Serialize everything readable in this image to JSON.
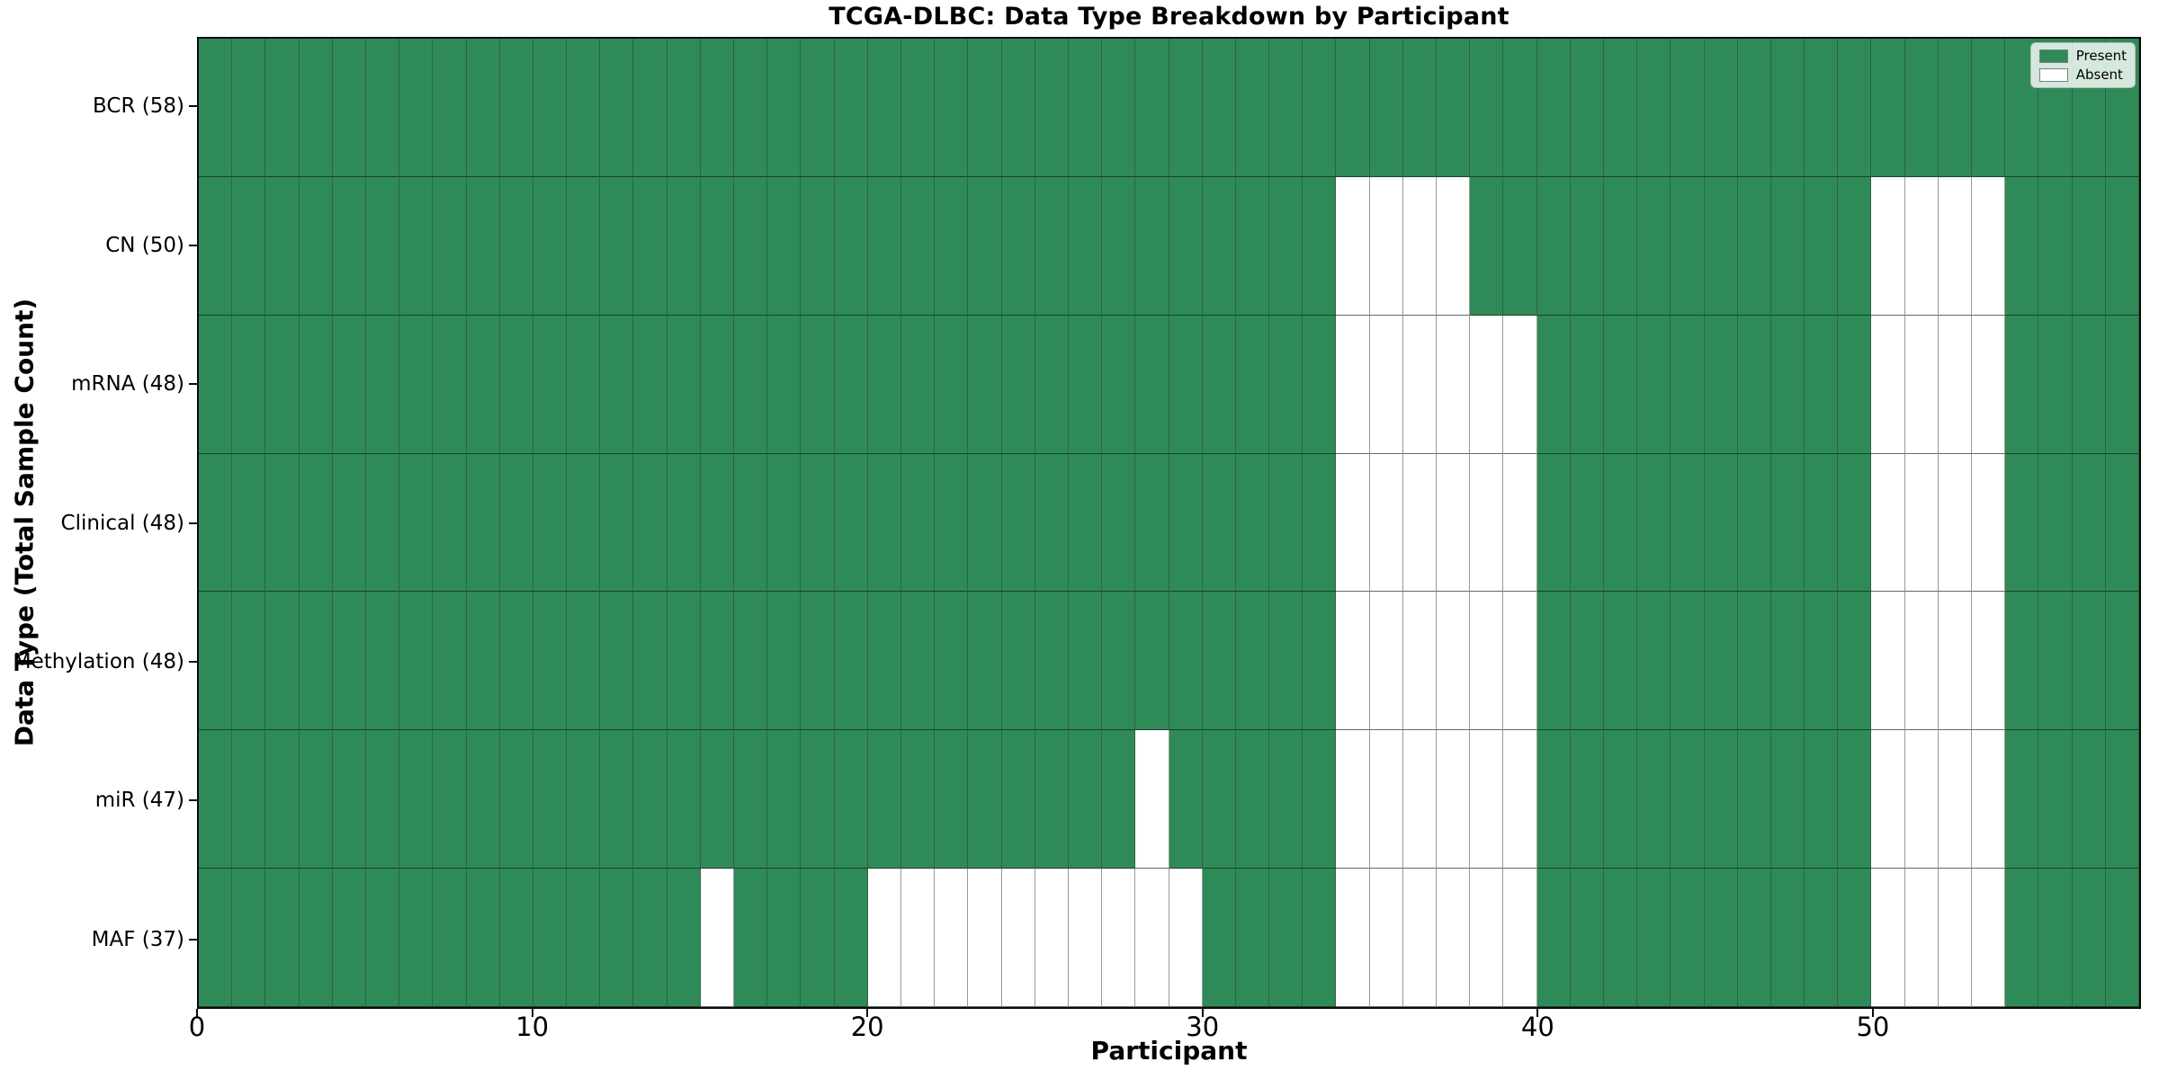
{
  "figure": {
    "title": "TCGA-DLBC: Data Type Breakdown by Participant",
    "xlabel": "Participant",
    "ylabel": "Data Type (Total Sample Count)"
  },
  "legend": {
    "items": [
      {
        "label": "Present",
        "color": "#2E8B57"
      },
      {
        "label": "Absent",
        "color": "#FFFFFF"
      }
    ]
  },
  "chart_data": {
    "type": "heatmap",
    "title": "TCGA-DLBC: Data Type Breakdown by Participant",
    "xlabel": "Participant",
    "ylabel": "Data Type (Total Sample Count)",
    "n_participants": 58,
    "x_ticks": [
      0,
      10,
      20,
      30,
      40,
      50
    ],
    "xlim": [
      0,
      58
    ],
    "grid": true,
    "legend_position": "upper right",
    "colors": {
      "present": "#2E8B57",
      "absent": "#FFFFFF"
    },
    "rows": [
      {
        "label": "BCR (58)",
        "data_type": "BCR",
        "present_count": 58,
        "absent_participants": []
      },
      {
        "label": "CN (50)",
        "data_type": "CN",
        "present_count": 50,
        "absent_participants": [
          34,
          35,
          36,
          37,
          50,
          51,
          52,
          53
        ]
      },
      {
        "label": "mRNA (48)",
        "data_type": "mRNA",
        "present_count": 48,
        "absent_participants": [
          34,
          35,
          36,
          37,
          38,
          39,
          50,
          51,
          52,
          53
        ]
      },
      {
        "label": "Clinical (48)",
        "data_type": "Clinical",
        "present_count": 48,
        "absent_participants": [
          34,
          35,
          36,
          37,
          38,
          39,
          50,
          51,
          52,
          53
        ]
      },
      {
        "label": "Methylation (48)",
        "data_type": "Methylation",
        "present_count": 48,
        "absent_participants": [
          34,
          35,
          36,
          37,
          38,
          39,
          50,
          51,
          52,
          53
        ]
      },
      {
        "label": "miR (47)",
        "data_type": "miR",
        "present_count": 47,
        "absent_participants": [
          28,
          34,
          35,
          36,
          37,
          38,
          39,
          50,
          51,
          52,
          53
        ]
      },
      {
        "label": "MAF (37)",
        "data_type": "MAF",
        "present_count": 37,
        "absent_participants": [
          15,
          20,
          21,
          22,
          23,
          24,
          25,
          26,
          27,
          28,
          29,
          34,
          35,
          36,
          37,
          38,
          39,
          50,
          51,
          52,
          53
        ]
      }
    ]
  }
}
